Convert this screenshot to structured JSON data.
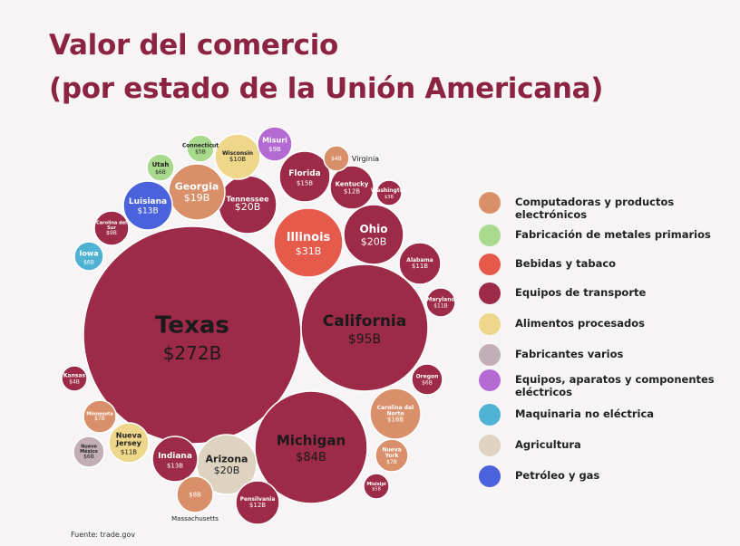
{
  "title": [
    "Valor del comercio",
    "(por estado de la Unión Americana)"
  ],
  "source": "Fuente: trade.gov",
  "colors": {
    "title": "#8c2342",
    "background": "#f6f4f4",
    "categories": {
      "Computadoras y productos electrónicos": "#d9906a",
      "Fabricación de metales primarios": "#a8d98c",
      "Bebidas y tabaco": "#e65a4c",
      "Equipos de transporte": "#9c2a48",
      "Alimentos procesados": "#eed68a",
      "Fabricantes varios": "#c2aeb6",
      "Equipos, aparatos y componentes eléctricos": "#b46ad2",
      "Maquinaria no eléctrica": "#4fb2d2",
      "Agricultura": "#ddd3c0",
      "Petróleo y gas": "#4a62dc"
    }
  },
  "legend": [
    "Computadoras y productos electrónicos",
    "Fabricación de metales primarios",
    "Bebidas y tabaco",
    "Equipos de transporte",
    "Alimentos procesados",
    "Fabricantes varios",
    "Equipos, aparatos y componentes eléctricos",
    "Maquinaria no eléctrica",
    "Agricultura",
    "Petróleo y gas"
  ],
  "chart_data": {
    "type": "bubble",
    "unit": "USD billions",
    "states": [
      {
        "name": "Texas",
        "value_label": "$272B",
        "value": 272,
        "category": "Equipos de transporte"
      },
      {
        "name": "California",
        "value_label": "$95B",
        "value": 95,
        "category": "Equipos de transporte"
      },
      {
        "name": "Michigan",
        "value_label": "$84B",
        "value": 84,
        "category": "Equipos de transporte"
      },
      {
        "name": "Illinois",
        "value_label": "$31B",
        "value": 31,
        "category": "Bebidas y tabaco"
      },
      {
        "name": "Ohio",
        "value_label": "$20B",
        "value": 20,
        "category": "Equipos de transporte"
      },
      {
        "name": "Tennessee",
        "value_label": "$20B",
        "value": 20,
        "category": "Equipos de transporte"
      },
      {
        "name": "Arizona",
        "value_label": "$20B",
        "value": 20,
        "category": "Agricultura"
      },
      {
        "name": "Georgia",
        "value_label": "$19B",
        "value": 19,
        "category": "Computadoras y productos electrónicos"
      },
      {
        "name": "Carolina del Norte",
        "value_label": "$16B",
        "value": 16,
        "category": "Computadoras y productos electrónicos"
      },
      {
        "name": "Florida",
        "value_label": "$15B",
        "value": 15,
        "category": "Equipos de transporte"
      },
      {
        "name": "Luisiana",
        "value_label": "$13B",
        "value": 13,
        "category": "Petróleo y gas"
      },
      {
        "name": "Indiana",
        "value_label": "$13B",
        "value": 13,
        "category": "Equipos de transporte"
      },
      {
        "name": "Kentucky",
        "value_label": "$12B",
        "value": 12,
        "category": "Equipos de transporte"
      },
      {
        "name": "Pensilvania",
        "value_label": "$12B",
        "value": 12,
        "category": "Equipos de transporte"
      },
      {
        "name": "Alabama",
        "value_label": "$11B",
        "value": 11,
        "category": "Equipos de transporte"
      },
      {
        "name": "Maryland",
        "value_label": "$11B",
        "value": 11,
        "category": "Equipos de transporte"
      },
      {
        "name": "Nueva Jersey",
        "value_label": "$11B",
        "value": 11,
        "category": "Alimentos procesados"
      },
      {
        "name": "Wisconsin",
        "value_label": "$10B",
        "value": 10,
        "category": "Alimentos procesados"
      },
      {
        "name": "Carolina del Sur",
        "value_label": "$9B",
        "value": 9,
        "category": "Equipos de transporte"
      },
      {
        "name": "Misuri",
        "value_label": "$9B",
        "value": 9,
        "category": "Equipos, aparatos y componentes eléctricos"
      },
      {
        "name": "Massachusetts",
        "value_label": "$8B",
        "value": 8,
        "category": "Computadoras y productos electrónicos"
      },
      {
        "name": "Minnesota",
        "value_label": "$7B",
        "value": 7,
        "category": "Computadoras y productos electrónicos"
      },
      {
        "name": "Nueva York",
        "value_label": "$7B",
        "value": 7,
        "category": "Computadoras y productos electrónicos"
      },
      {
        "name": "Utah",
        "value_label": "$6B",
        "value": 6,
        "category": "Fabricación de metales primarios"
      },
      {
        "name": "Iowa",
        "value_label": "$6B",
        "value": 6,
        "category": "Maquinaria no eléctrica"
      },
      {
        "name": "Nuevo México",
        "value_label": "$6B",
        "value": 6,
        "category": "Fabricantes varios"
      },
      {
        "name": "Oregon",
        "value_label": "$6B",
        "value": 6,
        "category": "Equipos de transporte"
      },
      {
        "name": "Connecticut",
        "value_label": "$5B",
        "value": 5,
        "category": "Fabricación de metales primarios"
      },
      {
        "name": "Misisipi",
        "value_label": "$5B",
        "value": 5,
        "category": "Equipos de transporte"
      },
      {
        "name": "Virginia",
        "value_label": "$4B",
        "value": 4,
        "category": "Computadoras y productos electrónicos"
      },
      {
        "name": "Kansas",
        "value_label": "$4B",
        "value": 4,
        "category": "Equipos de transporte"
      },
      {
        "name": "Washington",
        "value_label": "$3B",
        "value": 3,
        "category": "Equipos de transporte"
      }
    ]
  }
}
